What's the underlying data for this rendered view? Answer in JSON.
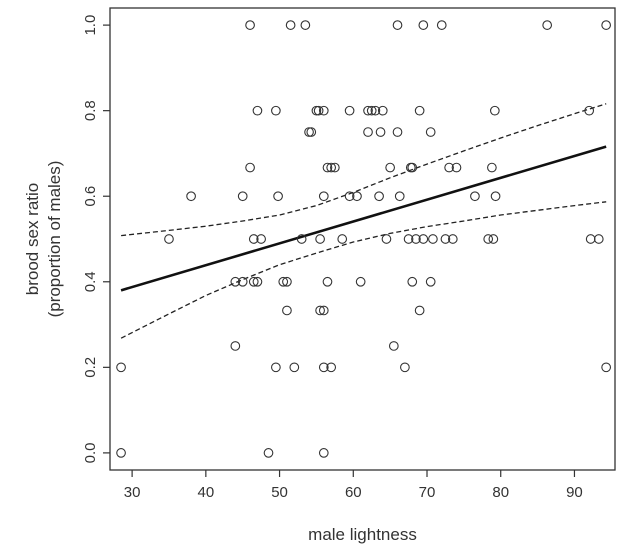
{
  "chart_data": {
    "type": "scatter",
    "title": "",
    "xlabel": "male lightness",
    "ylabel_lines": [
      "brood sex ratio",
      "(proportion of males)"
    ],
    "xlim": [
      27,
      95.5
    ],
    "ylim": [
      -0.04,
      1.04
    ],
    "x_ticks": [
      30,
      40,
      50,
      60,
      70,
      80,
      90
    ],
    "y_ticks": [
      0.0,
      0.2,
      0.4,
      0.6,
      0.8,
      1.0
    ],
    "y_tick_labels": [
      "0.0",
      "0.2",
      "0.4",
      "0.6",
      "0.8",
      "1.0"
    ],
    "grid": false,
    "legend": "none",
    "colors": {
      "points": "#333333",
      "fit": "#111111",
      "ci": "#222222",
      "axis": "#333333"
    },
    "points": [
      {
        "x": 28.5,
        "y": 0.2
      },
      {
        "x": 28.5,
        "y": 0.0
      },
      {
        "x": 35.0,
        "y": 0.5
      },
      {
        "x": 38.0,
        "y": 0.6
      },
      {
        "x": 44.0,
        "y": 0.25
      },
      {
        "x": 44.0,
        "y": 0.4
      },
      {
        "x": 45.0,
        "y": 0.6
      },
      {
        "x": 45.0,
        "y": 0.4
      },
      {
        "x": 46.0,
        "y": 1.0
      },
      {
        "x": 46.0,
        "y": 0.667
      },
      {
        "x": 46.5,
        "y": 0.4
      },
      {
        "x": 46.5,
        "y": 0.5
      },
      {
        "x": 47.0,
        "y": 0.8
      },
      {
        "x": 47.0,
        "y": 0.4
      },
      {
        "x": 47.5,
        "y": 0.5
      },
      {
        "x": 48.5,
        "y": 0.0
      },
      {
        "x": 49.5,
        "y": 0.8
      },
      {
        "x": 49.5,
        "y": 0.2
      },
      {
        "x": 49.8,
        "y": 0.6
      },
      {
        "x": 50.5,
        "y": 0.4
      },
      {
        "x": 51.0,
        "y": 0.4
      },
      {
        "x": 51.0,
        "y": 0.333
      },
      {
        "x": 51.5,
        "y": 1.0
      },
      {
        "x": 52.0,
        "y": 0.2
      },
      {
        "x": 53.0,
        "y": 0.5
      },
      {
        "x": 53.5,
        "y": 1.0
      },
      {
        "x": 54.0,
        "y": 0.75
      },
      {
        "x": 54.3,
        "y": 0.75
      },
      {
        "x": 55.0,
        "y": 0.8
      },
      {
        "x": 55.3,
        "y": 0.8
      },
      {
        "x": 55.5,
        "y": 0.5
      },
      {
        "x": 55.5,
        "y": 0.333
      },
      {
        "x": 56.0,
        "y": 0.8
      },
      {
        "x": 56.0,
        "y": 0.6
      },
      {
        "x": 56.0,
        "y": 0.333
      },
      {
        "x": 56.0,
        "y": 0.0
      },
      {
        "x": 56.0,
        "y": 0.2
      },
      {
        "x": 56.5,
        "y": 0.667
      },
      {
        "x": 56.5,
        "y": 0.4
      },
      {
        "x": 57.0,
        "y": 0.2
      },
      {
        "x": 57.0,
        "y": 0.667
      },
      {
        "x": 57.5,
        "y": 0.667
      },
      {
        "x": 58.5,
        "y": 0.5
      },
      {
        "x": 59.5,
        "y": 0.8
      },
      {
        "x": 59.5,
        "y": 0.6
      },
      {
        "x": 60.5,
        "y": 0.6
      },
      {
        "x": 61.0,
        "y": 0.4
      },
      {
        "x": 62.0,
        "y": 0.8
      },
      {
        "x": 62.0,
        "y": 0.75
      },
      {
        "x": 62.5,
        "y": 0.8
      },
      {
        "x": 63.0,
        "y": 0.8
      },
      {
        "x": 63.5,
        "y": 0.6
      },
      {
        "x": 63.7,
        "y": 0.75
      },
      {
        "x": 64.0,
        "y": 0.8
      },
      {
        "x": 64.5,
        "y": 0.5
      },
      {
        "x": 65.0,
        "y": 0.667
      },
      {
        "x": 65.5,
        "y": 0.25
      },
      {
        "x": 66.0,
        "y": 0.75
      },
      {
        "x": 66.0,
        "y": 1.0
      },
      {
        "x": 66.3,
        "y": 0.6
      },
      {
        "x": 67.0,
        "y": 0.2
      },
      {
        "x": 67.5,
        "y": 0.5
      },
      {
        "x": 67.8,
        "y": 0.667
      },
      {
        "x": 68.0,
        "y": 0.667
      },
      {
        "x": 68.0,
        "y": 0.4
      },
      {
        "x": 68.5,
        "y": 0.5
      },
      {
        "x": 69.0,
        "y": 0.8
      },
      {
        "x": 69.0,
        "y": 0.333
      },
      {
        "x": 69.5,
        "y": 0.5
      },
      {
        "x": 69.5,
        "y": 1.0
      },
      {
        "x": 70.5,
        "y": 0.75
      },
      {
        "x": 70.5,
        "y": 0.4
      },
      {
        "x": 70.8,
        "y": 0.5
      },
      {
        "x": 72.0,
        "y": 1.0
      },
      {
        "x": 72.5,
        "y": 0.5
      },
      {
        "x": 73.0,
        "y": 0.667
      },
      {
        "x": 73.5,
        "y": 0.5
      },
      {
        "x": 74.0,
        "y": 0.667
      },
      {
        "x": 76.5,
        "y": 0.6
      },
      {
        "x": 78.3,
        "y": 0.5
      },
      {
        "x": 78.8,
        "y": 0.667
      },
      {
        "x": 79.0,
        "y": 0.5
      },
      {
        "x": 79.2,
        "y": 0.8
      },
      {
        "x": 79.3,
        "y": 0.6
      },
      {
        "x": 86.3,
        "y": 1.0
      },
      {
        "x": 92.0,
        "y": 0.8
      },
      {
        "x": 92.2,
        "y": 0.5
      },
      {
        "x": 93.3,
        "y": 0.5
      },
      {
        "x": 94.3,
        "y": 1.0
      },
      {
        "x": 94.3,
        "y": 0.2
      }
    ],
    "fit_line": {
      "x": [
        28.5,
        94.3
      ],
      "y": [
        0.38,
        0.716
      ]
    },
    "ci_upper": {
      "x": [
        28.5,
        35,
        40,
        45,
        50,
        55,
        60,
        65,
        70,
        75,
        80,
        85,
        90,
        94.3
      ],
      "y": [
        0.508,
        0.52,
        0.53,
        0.542,
        0.556,
        0.578,
        0.609,
        0.643,
        0.675,
        0.706,
        0.736,
        0.765,
        0.793,
        0.816
      ]
    },
    "ci_lower": {
      "x": [
        28.5,
        35,
        40,
        45,
        50,
        55,
        60,
        65,
        70,
        75,
        80,
        85,
        90,
        94.3
      ],
      "y": [
        0.268,
        0.325,
        0.368,
        0.405,
        0.44,
        0.467,
        0.493,
        0.513,
        0.529,
        0.542,
        0.556,
        0.567,
        0.578,
        0.587
      ]
    }
  }
}
